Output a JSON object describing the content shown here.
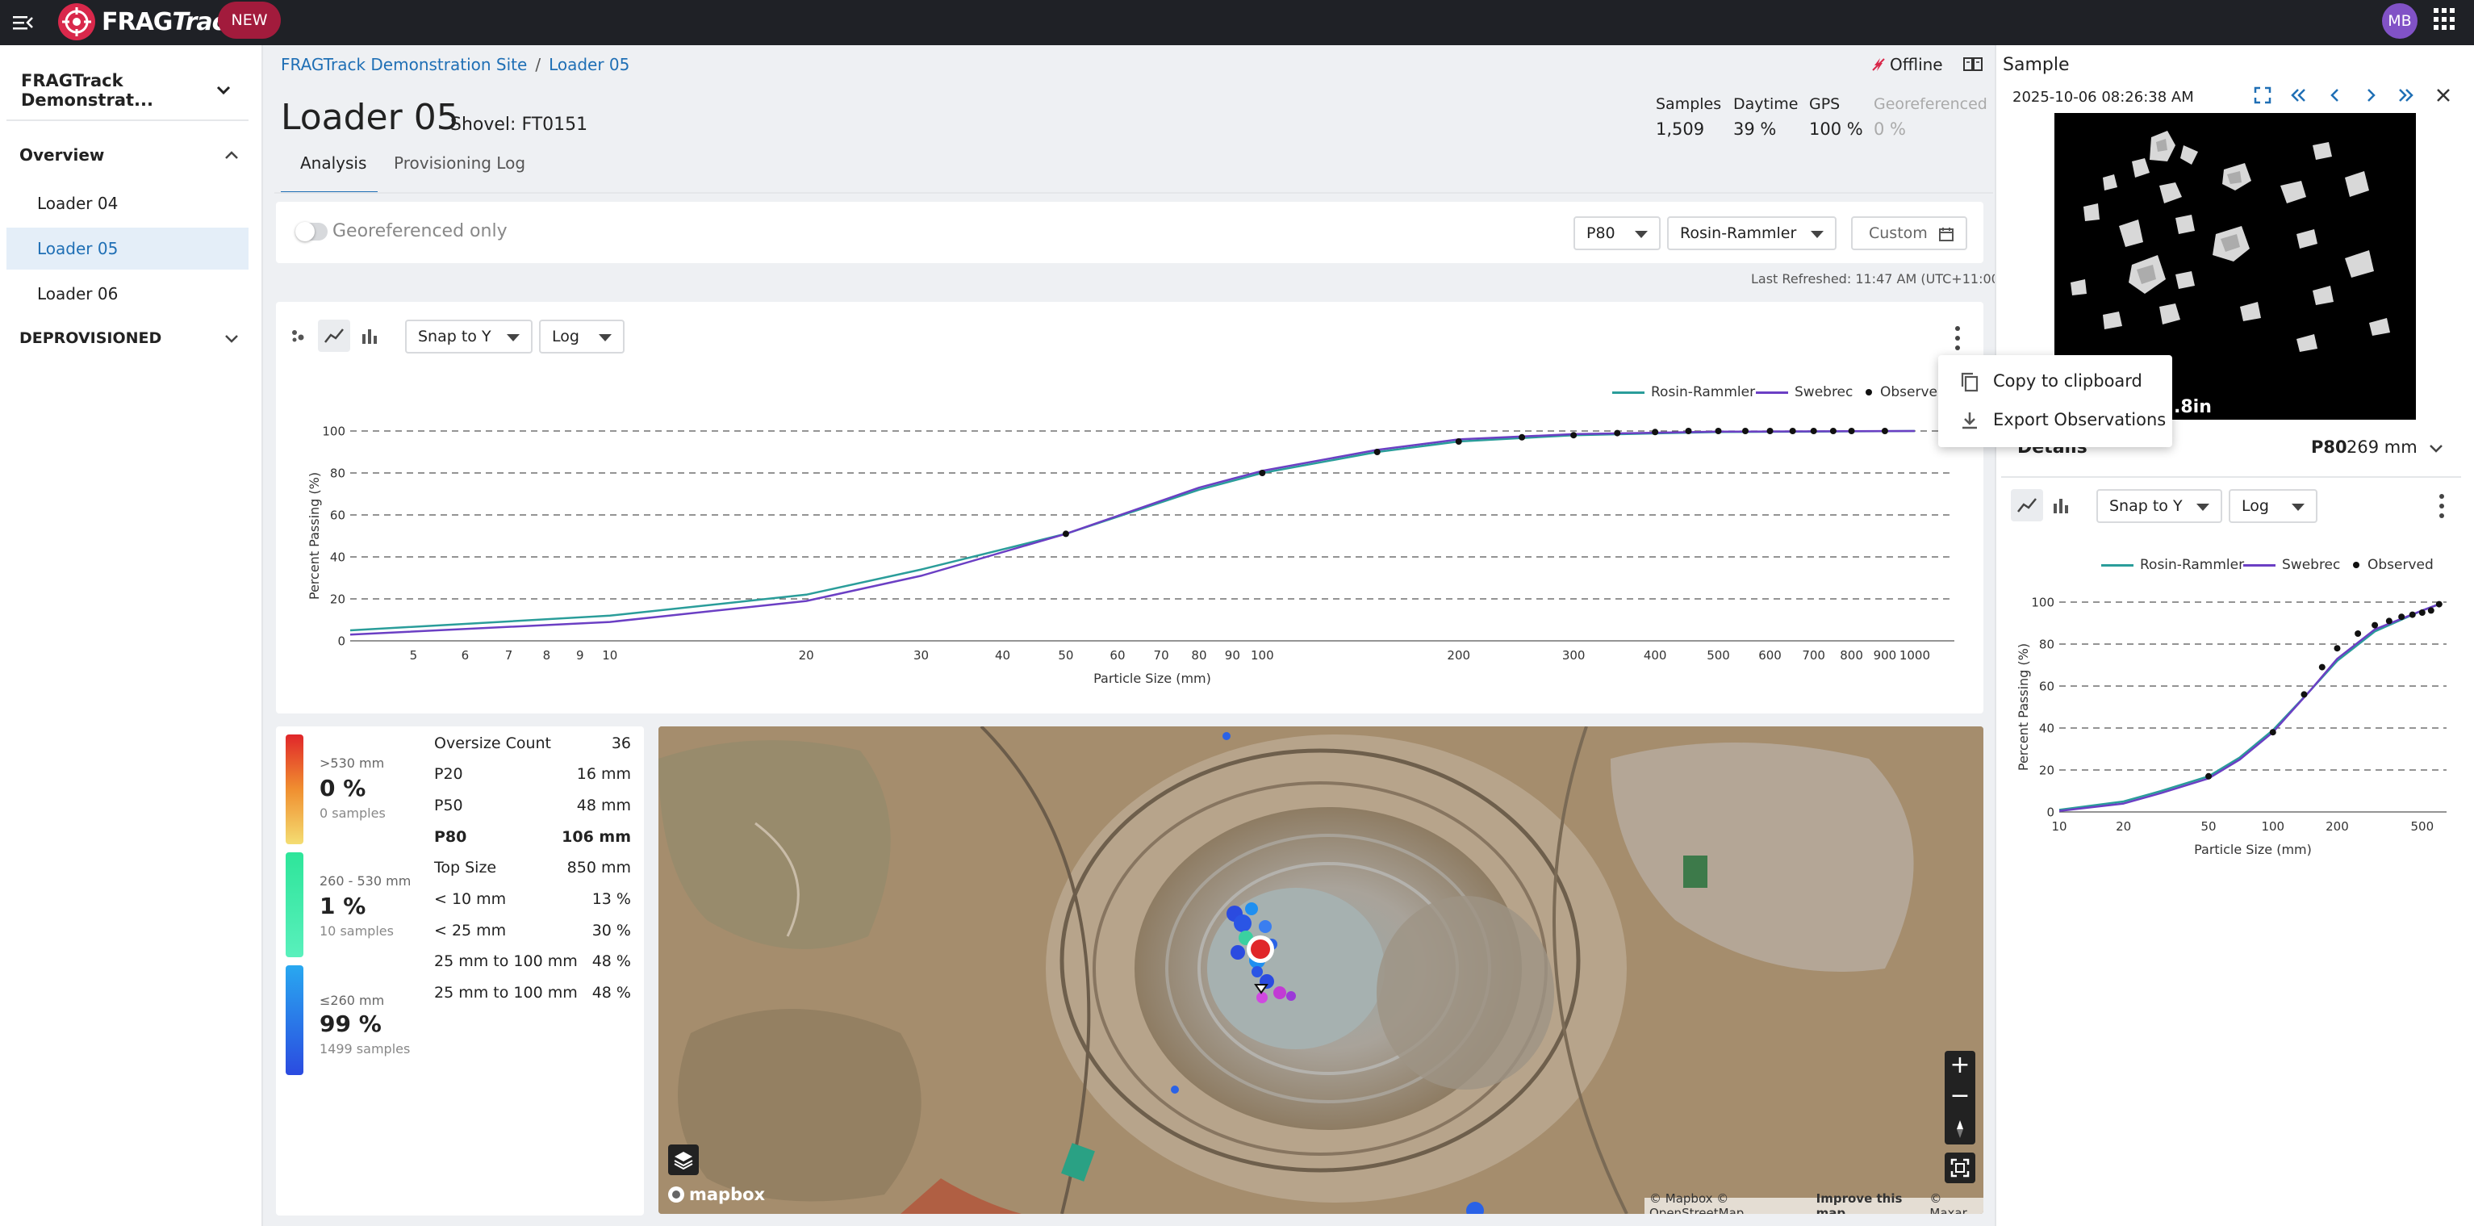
{
  "app": {
    "logo_text_main": "FRAG",
    "logo_text_tail": "Track",
    "new_badge": "NEW",
    "avatar_initials": "MB",
    "brand_color": "#d9284b"
  },
  "sidebar": {
    "site_selector": "FRAGTrack Demonstrat...",
    "overview_label": "Overview",
    "items": [
      {
        "label": "Loader 04",
        "active": false
      },
      {
        "label": "Loader 05",
        "active": true
      },
      {
        "label": "Loader 06",
        "active": false
      }
    ],
    "deprovisioned_label": "DEPROVISIONED"
  },
  "breadcrumb": {
    "site": "FRAGTrack Demonstration Site",
    "separator": "/",
    "current": "Loader 05"
  },
  "page": {
    "title": "Loader 05",
    "subtitle": "Shovel: FT0151"
  },
  "stats": [
    {
      "label": "Samples",
      "value": "1,509",
      "dim": false
    },
    {
      "label": "Daytime",
      "value": "39 %",
      "dim": false
    },
    {
      "label": "GPS",
      "value": "100 %",
      "dim": false
    },
    {
      "label": "Georeferenced",
      "value": "0 %",
      "dim": true
    }
  ],
  "status": {
    "offline_label": "Offline"
  },
  "tabs": [
    {
      "label": "Analysis",
      "active": true
    },
    {
      "label": "Provisioning Log",
      "active": false
    }
  ],
  "filters": {
    "georef_toggle_label": "Georeferenced only",
    "metric_select": "P80",
    "model_select": "Rosin-Rammler",
    "date_select": "Custom",
    "last_refreshed": "Last Refreshed: 11:47 AM (UTC+11:00)"
  },
  "main_chart_controls": {
    "snap_select": "Snap to Y",
    "scale_select": "Log"
  },
  "context_menu": {
    "items": [
      {
        "label": "Copy to clipboard",
        "icon": "copy-icon"
      },
      {
        "label": "Export Observations",
        "icon": "download-icon"
      }
    ]
  },
  "chart_data": [
    {
      "type": "line",
      "x_scale": "log",
      "xlabel": "Particle Size (mm)",
      "ylabel": "Percent Passing (%)",
      "xlim": [
        4,
        1150
      ],
      "ylim": [
        0,
        100
      ],
      "x_ticks": [
        5,
        6,
        7,
        8,
        9,
        10,
        20,
        30,
        40,
        50,
        60,
        70,
        80,
        90,
        100,
        200,
        300,
        400,
        500,
        600,
        700,
        800,
        900,
        1000
      ],
      "y_ticks": [
        0,
        20,
        40,
        60,
        80,
        100
      ],
      "grid": "horizontal dashed",
      "legend": "top-right",
      "series": [
        {
          "name": "Rosin-Rammler",
          "color": "#2a9d9a",
          "x": [
            4,
            10,
            20,
            30,
            50,
            80,
            100,
            150,
            200,
            300,
            500,
            1000
          ],
          "y": [
            5,
            12,
            22,
            34,
            51,
            72,
            80,
            90,
            95,
            98,
            99.5,
            100
          ]
        },
        {
          "name": "Swebrec",
          "color": "#6b3fc4",
          "x": [
            4,
            10,
            20,
            30,
            50,
            80,
            100,
            150,
            200,
            300,
            500,
            1000
          ],
          "y": [
            3,
            9,
            19,
            31,
            51,
            73,
            81,
            91,
            96,
            98.5,
            99.7,
            100
          ]
        },
        {
          "name": "Observed",
          "color": "#111111",
          "x": [
            50,
            100,
            150,
            200,
            250,
            300,
            350,
            400,
            450,
            500,
            550,
            600,
            650,
            700,
            750,
            800,
            900
          ],
          "y": [
            51,
            80,
            90,
            95,
            97,
            98,
            99,
            99.5,
            100,
            100,
            100,
            100,
            100,
            100,
            100,
            100,
            100
          ]
        }
      ]
    },
    {
      "type": "line",
      "x_scale": "log",
      "xlabel": "Particle Size (mm)",
      "ylabel": "Percent Passing (%)",
      "xlim": [
        10,
        650
      ],
      "ylim": [
        0,
        100
      ],
      "x_ticks": [
        10,
        20,
        50,
        100,
        200,
        500
      ],
      "y_ticks": [
        0,
        20,
        40,
        60,
        80,
        100
      ],
      "grid": "horizontal dashed",
      "legend": "top",
      "series": [
        {
          "name": "Rosin-Rammler",
          "color": "#2a9d9a",
          "x": [
            10,
            20,
            30,
            50,
            70,
            100,
            150,
            200,
            300,
            500,
            600
          ],
          "y": [
            1,
            5,
            10,
            17,
            26,
            39,
            58,
            72,
            86,
            96,
            99
          ]
        },
        {
          "name": "Swebrec",
          "color": "#6b3fc4",
          "x": [
            10,
            20,
            30,
            50,
            70,
            100,
            150,
            200,
            300,
            500,
            600
          ],
          "y": [
            0.5,
            4,
            9,
            16,
            25,
            38,
            58,
            73,
            87,
            96,
            99
          ]
        },
        {
          "name": "Observed",
          "color": "#111111",
          "x": [
            50,
            100,
            140,
            170,
            200,
            250,
            300,
            350,
            400,
            450,
            500,
            550,
            600
          ],
          "y": [
            17,
            38,
            56,
            69,
            78,
            85,
            89,
            91,
            93,
            94,
            95,
            96,
            99
          ]
        }
      ]
    }
  ],
  "gradation": [
    {
      "range": ">530 mm",
      "pct": "0 %",
      "samples": "0 samples"
    },
    {
      "range": "260 - 530 mm",
      "pct": "1 %",
      "samples": "10 samples"
    },
    {
      "range": "≤260 mm",
      "pct": "99 %",
      "samples": "1499 samples"
    }
  ],
  "size_stats": [
    {
      "label": "Oversize Count",
      "value": "36",
      "bold": false
    },
    {
      "label": "P20",
      "value": "16 mm",
      "bold": false
    },
    {
      "label": "P50",
      "value": "48 mm",
      "bold": false
    },
    {
      "label": "P80",
      "value": "106 mm",
      "bold": true
    },
    {
      "label": "Top Size",
      "value": "850 mm",
      "bold": false
    },
    {
      "label": "< 10 mm",
      "value": "13 %",
      "bold": false
    },
    {
      "label": "< 25 mm",
      "value": "30 %",
      "bold": false
    },
    {
      "label": "25 mm to 100 mm",
      "value": "48 %",
      "bold": false
    },
    {
      "label": "25 mm to 100 mm",
      "value": "48 %",
      "bold": false
    }
  ],
  "map": {
    "brand": "mapbox",
    "attribution_1": "© Mapbox © OpenStreetMap",
    "attribution_improve": "Improve this map",
    "attribution_2": "© Maxar"
  },
  "sample_panel": {
    "title": "Sample",
    "timestamp": "2025-10-06 08:26:38 AM",
    "image_caption": ".8in"
  },
  "details": {
    "title": "Details",
    "metric": "P80",
    "value": "269 mm",
    "snap_select": "Snap to Y",
    "scale_select": "Log"
  }
}
